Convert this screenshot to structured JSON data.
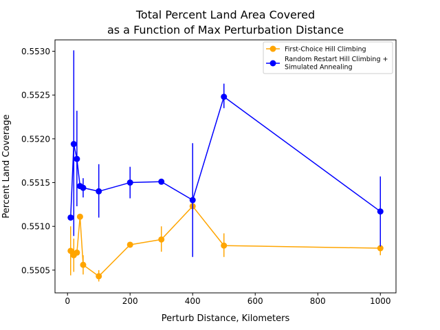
{
  "chart_data": {
    "type": "line",
    "title": "Total Percent Land Area Covered\nas a Function of Max Perturbation Distance",
    "title_lines": [
      "Total Percent Land Area Covered",
      "as a Function of Max Perturbation Distance"
    ],
    "xlabel": "Perturb Distance, Kilometers",
    "ylabel": "Percent Land Coverage",
    "xlim": [
      -40,
      1050
    ],
    "ylim": [
      0.55024,
      0.55313
    ],
    "x_ticks": [
      0,
      200,
      400,
      600,
      800,
      1000
    ],
    "y_ticks": [
      0.5505,
      0.551,
      0.5515,
      0.552,
      0.5525,
      0.553
    ],
    "x_tick_labels": [
      "0",
      "200",
      "400",
      "600",
      "800",
      "1000"
    ],
    "y_tick_labels": [
      "0.5505",
      "0.5510",
      "0.5515",
      "0.5520",
      "0.5525",
      "0.5530"
    ],
    "grid": false,
    "legend_position": "top-right",
    "series": [
      {
        "name": "First-Choice Hill Climbing",
        "color": "#ffa500",
        "points": [
          {
            "x": 10,
            "y": 0.55072,
            "err_low": 0.55044,
            "err_high": 0.551
          },
          {
            "x": 20,
            "y": 0.55067,
            "err_low": 0.55048,
            "err_high": 0.55086
          },
          {
            "x": 30,
            "y": 0.5507,
            "err_low": 0.5507,
            "err_high": 0.5507
          },
          {
            "x": 40,
            "y": 0.55111,
            "err_low": 0.55111,
            "err_high": 0.55111
          },
          {
            "x": 50,
            "y": 0.55056,
            "err_low": 0.55045,
            "err_high": 0.55067
          },
          {
            "x": 100,
            "y": 0.55043,
            "err_low": 0.55037,
            "err_high": 0.5505
          },
          {
            "x": 200,
            "y": 0.55079,
            "err_low": 0.55079,
            "err_high": 0.55079
          },
          {
            "x": 300,
            "y": 0.55085,
            "err_low": 0.55071,
            "err_high": 0.551
          },
          {
            "x": 400,
            "y": 0.55123,
            "err_low": 0.55123,
            "err_high": 0.55123
          },
          {
            "x": 500,
            "y": 0.55078,
            "err_low": 0.55065,
            "err_high": 0.55092
          },
          {
            "x": 1000,
            "y": 0.55075,
            "err_low": 0.55067,
            "err_high": 0.55084
          }
        ]
      },
      {
        "name": "Random Restart Hill Climbing +\nSimulated Annealing",
        "name_lines": [
          "Random Restart Hill Climbing +",
          "Simulated Annealing"
        ],
        "color": "#0000ff",
        "points": [
          {
            "x": 10,
            "y": 0.5511,
            "err_low": 0.5511,
            "err_high": 0.5511
          },
          {
            "x": 20,
            "y": 0.55194,
            "err_low": 0.55089,
            "err_high": 0.55301
          },
          {
            "x": 30,
            "y": 0.55177,
            "err_low": 0.55123,
            "err_high": 0.55232
          },
          {
            "x": 40,
            "y": 0.55146,
            "err_low": 0.55146,
            "err_high": 0.55146
          },
          {
            "x": 50,
            "y": 0.55144,
            "err_low": 0.55133,
            "err_high": 0.55155
          },
          {
            "x": 100,
            "y": 0.5514,
            "err_low": 0.5511,
            "err_high": 0.55171
          },
          {
            "x": 200,
            "y": 0.5515,
            "err_low": 0.55132,
            "err_high": 0.55168
          },
          {
            "x": 300,
            "y": 0.55151,
            "err_low": 0.55148,
            "err_high": 0.55153
          },
          {
            "x": 400,
            "y": 0.5513,
            "err_low": 0.55065,
            "err_high": 0.55195
          },
          {
            "x": 500,
            "y": 0.55248,
            "err_low": 0.55235,
            "err_high": 0.55263
          },
          {
            "x": 1000,
            "y": 0.55117,
            "err_low": 0.55077,
            "err_high": 0.55157
          }
        ]
      }
    ]
  }
}
